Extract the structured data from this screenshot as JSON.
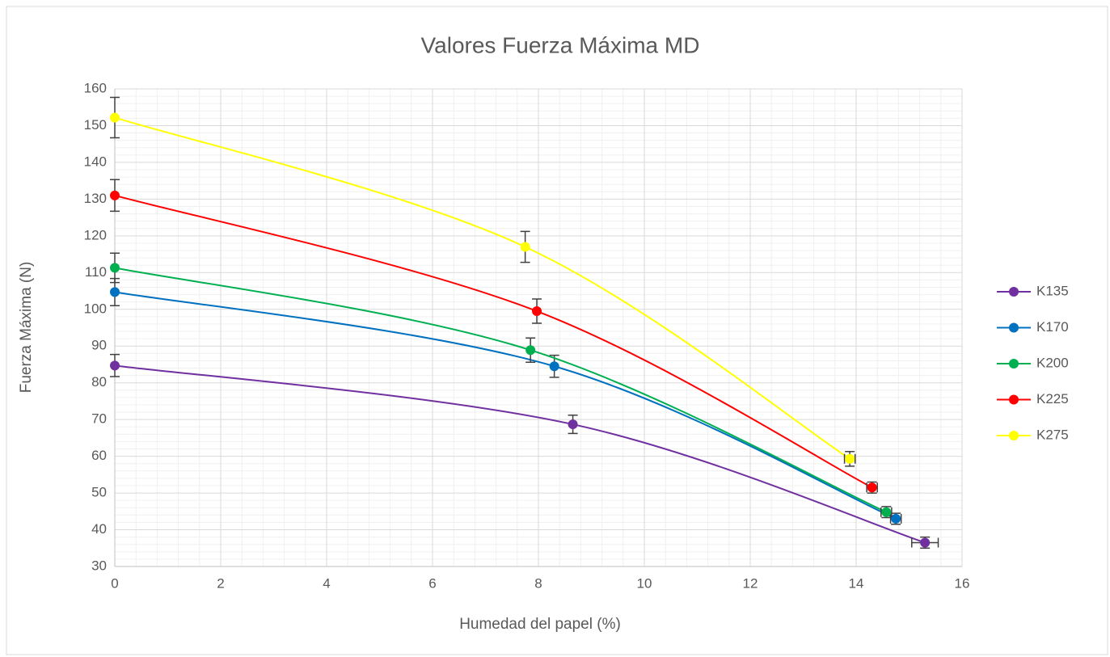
{
  "chart_data": {
    "type": "scatter",
    "title": "Valores Fuerza Máxima MD",
    "xlabel": "Humedad del papel (%)",
    "ylabel": "Fuerza Máxima (N)",
    "xlim": [
      0,
      16
    ],
    "xticks": [
      0,
      2,
      4,
      6,
      8,
      10,
      12,
      14,
      16
    ],
    "ylim": [
      30,
      160
    ],
    "yticks": [
      30,
      40,
      50,
      60,
      70,
      80,
      90,
      100,
      110,
      120,
      130,
      140,
      150,
      160
    ],
    "grid": true,
    "minor_grid": true,
    "smooth": true,
    "legend": "right",
    "series": [
      {
        "name": "K135",
        "color": "#7030a0",
        "x": [
          0,
          8.65,
          15.3
        ],
        "values": [
          84.7,
          68.7,
          36.5
        ],
        "yerr": [
          3,
          2.5,
          1.5
        ],
        "xerr": [
          0,
          0,
          0.25
        ]
      },
      {
        "name": "K170",
        "color": "#0070c0",
        "x": [
          0,
          8.3,
          14.75
        ],
        "values": [
          104.7,
          84.5,
          43
        ],
        "yerr": [
          3.7,
          3,
          1.5
        ],
        "xerr": [
          0,
          0,
          0.1
        ]
      },
      {
        "name": "K200",
        "color": "#00b050",
        "x": [
          0,
          7.85,
          14.57
        ],
        "values": [
          111.3,
          88.9,
          44.8
        ],
        "yerr": [
          4,
          3.3,
          1.5
        ],
        "xerr": [
          0,
          0,
          0.1
        ]
      },
      {
        "name": "K225",
        "color": "#ff0000",
        "x": [
          0,
          7.97,
          14.3
        ],
        "values": [
          131,
          99.5,
          51.5
        ],
        "yerr": [
          4.3,
          3.3,
          1.5
        ],
        "xerr": [
          0,
          0,
          0.1
        ]
      },
      {
        "name": "K275",
        "color": "#ffff00",
        "x": [
          0,
          7.75,
          13.88
        ],
        "values": [
          152.2,
          117,
          59.3
        ],
        "yerr": [
          5.5,
          4.2,
          2
        ],
        "xerr": [
          0,
          0,
          0.1
        ]
      }
    ]
  }
}
